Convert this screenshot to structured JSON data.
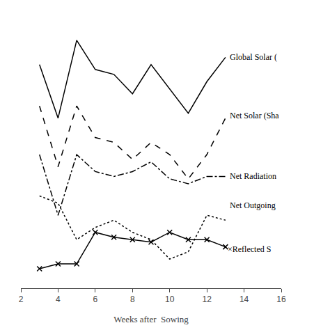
{
  "chart_data": {
    "type": "line",
    "xlabel": "Weeks after  Sowing",
    "x": [
      3,
      4,
      5,
      6,
      7,
      8,
      9,
      10,
      11,
      12,
      13
    ],
    "series": [
      {
        "color": "#000000",
        "line_style": "solid",
        "values": [
          9.2,
          7.0,
          10.2,
          9.0,
          8.8,
          8.0,
          9.2,
          8.2,
          7.2,
          8.5,
          9.5
        ]
      },
      {
        "color": "#000000",
        "line_style": "dashed",
        "values": [
          7.5,
          5.0,
          7.5,
          6.2,
          6.0,
          5.3,
          6.0,
          5.5,
          4.5,
          5.5,
          7.0
        ]
      },
      {
        "color": "#000000",
        "line_style": "dashdot",
        "values": [
          5.5,
          3.0,
          5.5,
          4.8,
          4.6,
          4.8,
          5.2,
          4.5,
          4.3,
          4.6,
          4.6
        ]
      },
      {
        "color": "#000000",
        "line_style": "dotted",
        "values": [
          3.8,
          3.5,
          2.0,
          2.5,
          2.8,
          2.3,
          2.0,
          1.2,
          1.5,
          3.0,
          2.8
        ]
      },
      {
        "color": "#000000",
        "line_style": "solid",
        "marker": "x",
        "values": [
          0.8,
          1.0,
          1.0,
          2.3,
          2.1,
          2.0,
          1.9,
          2.3,
          2.0,
          2.0,
          1.7
        ]
      }
    ],
    "annotations": [
      {
        "x": 13.15,
        "y": 9.5,
        "text": "Global Solar ("
      },
      {
        "x": 13.15,
        "y": 7.1,
        "text": "Net Solar (Sha"
      },
      {
        "x": 13.15,
        "y": 4.6,
        "text": "Net Radiation"
      },
      {
        "x": 13.15,
        "y": 3.4,
        "text": "Net Outgoing"
      },
      {
        "x": 13.05,
        "y": 1.6,
        "text": "×Reflected S"
      }
    ],
    "xlim": [
      2,
      16
    ],
    "xticks": [
      2,
      4,
      6,
      8,
      10,
      12,
      14,
      16
    ],
    "ylim": [
      0,
      11
    ],
    "grid": false,
    "tick_labels": "x"
  }
}
